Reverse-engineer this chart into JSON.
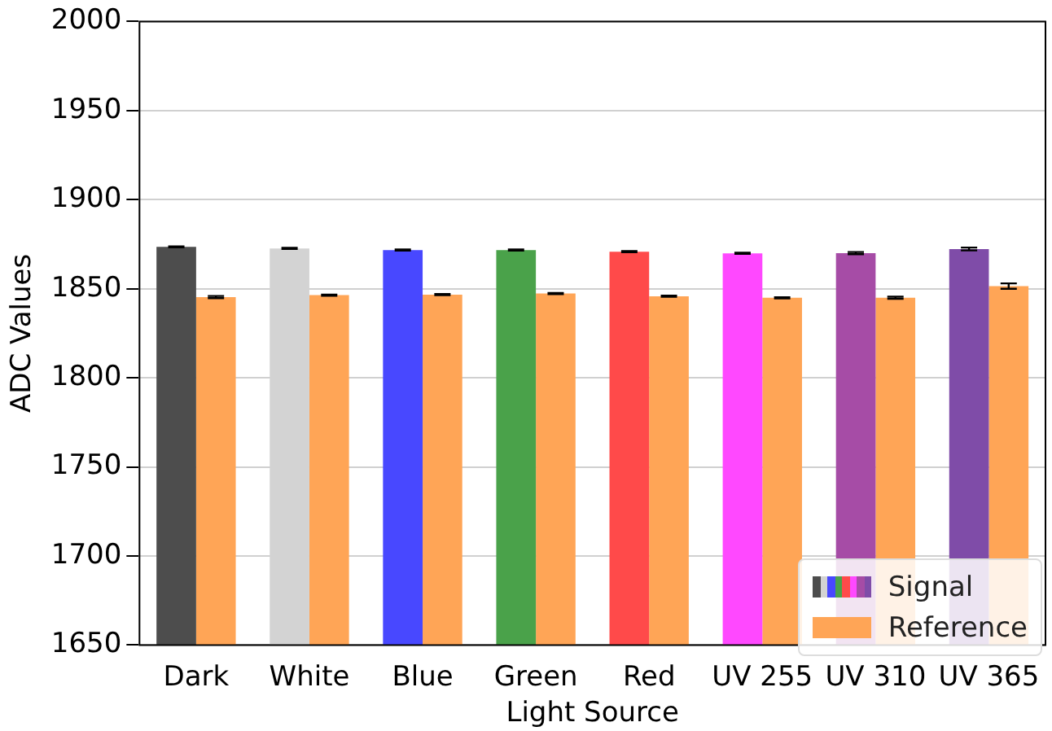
{
  "chart_data": {
    "type": "bar",
    "xlabel": "Light Source",
    "ylabel": "ADC Values",
    "categories": [
      "Dark",
      "White",
      "Blue",
      "Green",
      "Red",
      "UV 255",
      "UV 310",
      "UV 365"
    ],
    "series": [
      {
        "name": "Signal",
        "colors": [
          "#4d4d4d",
          "#d3d3d3",
          "#4848ff",
          "#4aa24a",
          "#ff4a4a",
          "#ff48ff",
          "#a64ca6",
          "#7f4ca8"
        ],
        "values": [
          1873.5,
          1872.6,
          1871.7,
          1871.7,
          1870.8,
          1869.9,
          1870,
          1872.3
        ],
        "errors": [
          0.3,
          0.3,
          0.3,
          0.3,
          0.3,
          0.3,
          0.6,
          0.8
        ]
      },
      {
        "name": "Reference",
        "color": "#ffa556",
        "values": [
          1845.3,
          1846.4,
          1846.7,
          1847.3,
          1845.8,
          1844.9,
          1844.9,
          1851.5
        ],
        "errors": [
          0.6,
          0.3,
          0.3,
          0.3,
          0.3,
          0.3,
          0.6,
          1.5
        ]
      }
    ],
    "ylim": [
      1650,
      2000
    ],
    "yticks": [
      1650,
      1700,
      1750,
      1800,
      1850,
      1900,
      1950,
      2000
    ],
    "grid": "y",
    "legend": "bottom right"
  }
}
